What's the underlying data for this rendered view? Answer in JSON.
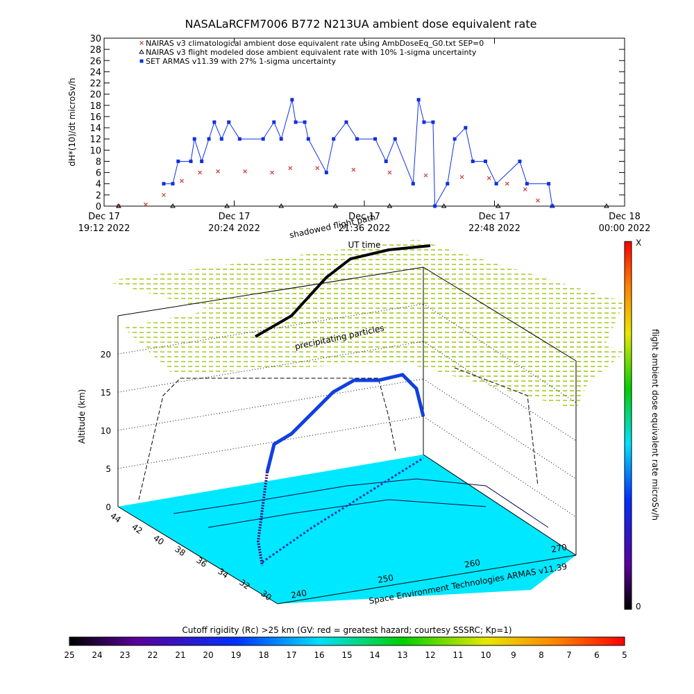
{
  "chart_data": {
    "type": "line",
    "title": "NASALaRCFM7006  B772 N213UA ambient dose equivalent rate",
    "y_label": "dH*(10)/dt microSv/h",
    "xlim": [
      "2022-12-17 19:12",
      "2022-12-18 00:00"
    ],
    "xticks": [
      {
        "value": "2022-12-17 19:12",
        "label": [
          "Dec 17",
          "19:12 2022"
        ]
      },
      {
        "value": "2022-12-17 20:24",
        "label": [
          "Dec 17",
          "20:24 2022"
        ]
      },
      {
        "value": "2022-12-17 21:36",
        "label": [
          "Dec 17",
          "21:36 2022"
        ]
      },
      {
        "value": "2022-12-17 22:48",
        "label": [
          "Dec 17",
          "22:48 2022"
        ]
      },
      {
        "value": "2022-12-18 00:00",
        "label": [
          "Dec 18",
          "00:00 2022"
        ]
      }
    ],
    "ylim": [
      0,
      30
    ],
    "yticks": [
      0,
      2,
      4,
      6,
      8,
      10,
      12,
      14,
      16,
      18,
      20,
      22,
      24,
      26,
      28,
      30
    ],
    "series": [
      {
        "name": "NAIRAS v3 climatological ambient dose equivalent rate using AmbDoseEq_G0.txt SEP=0",
        "color": "#c84040",
        "marker": "x",
        "x": [
          "2022-12-17 19:20",
          "2022-12-17 19:35",
          "2022-12-17 19:45",
          "2022-12-17 19:55",
          "2022-12-17 20:05",
          "2022-12-17 20:15",
          "2022-12-17 20:30",
          "2022-12-17 20:45",
          "2022-12-17 20:55",
          "2022-12-17 21:10",
          "2022-12-17 21:30",
          "2022-12-17 21:50",
          "2022-12-17 22:10",
          "2022-12-17 22:30",
          "2022-12-17 22:45",
          "2022-12-17 22:55",
          "2022-12-17 23:05",
          "2022-12-17 23:12",
          "2022-12-17 23:20"
        ],
        "values": [
          0,
          0.3,
          2,
          4.5,
          6,
          6.2,
          6.2,
          6,
          6.8,
          6.8,
          6.5,
          6,
          5.5,
          5.2,
          5,
          4,
          3,
          1,
          0
        ]
      },
      {
        "name": "NAIRAS v3 flight modeled dose ambient equivalent rate with 10% 1-sigma uncertainty",
        "color": "#000000",
        "marker": "triangle",
        "x": [
          "2022-12-17 19:20",
          "2022-12-17 19:50",
          "2022-12-17 20:20",
          "2022-12-17 20:50",
          "2022-12-17 21:20",
          "2022-12-17 21:50",
          "2022-12-17 22:20",
          "2022-12-17 22:50",
          "2022-12-17 23:20",
          "2022-12-17 23:50"
        ],
        "values": [
          0,
          0,
          0,
          0,
          0,
          0,
          0,
          0,
          0,
          0
        ]
      },
      {
        "name": "SET ARMAS v11.39 with 27% 1-sigma uncertainty",
        "color": "#1030e0",
        "marker": "square",
        "x": [
          "2022-12-17 19:45",
          "2022-12-17 19:50",
          "2022-12-17 19:53",
          "2022-12-17 20:00",
          "2022-12-17 20:02",
          "2022-12-17 20:06",
          "2022-12-17 20:10",
          "2022-12-17 20:13",
          "2022-12-17 20:17",
          "2022-12-17 20:21",
          "2022-12-17 20:27",
          "2022-12-17 20:40",
          "2022-12-17 20:46",
          "2022-12-17 20:50",
          "2022-12-17 20:56",
          "2022-12-17 20:58",
          "2022-12-17 21:03",
          "2022-12-17 21:05",
          "2022-12-17 21:15",
          "2022-12-17 21:19",
          "2022-12-17 21:26",
          "2022-12-17 21:32",
          "2022-12-17 21:42",
          "2022-12-17 21:48",
          "2022-12-17 21:53",
          "2022-12-17 22:03",
          "2022-12-17 22:06",
          "2022-12-17 22:09",
          "2022-12-17 22:14",
          "2022-12-17 22:15",
          "2022-12-17 22:22",
          "2022-12-17 22:26",
          "2022-12-17 22:32",
          "2022-12-17 22:36",
          "2022-12-17 22:43",
          "2022-12-17 22:49",
          "2022-12-17 23:02",
          "2022-12-17 23:06",
          "2022-12-17 23:18",
          "2022-12-17 23:20"
        ],
        "values": [
          4,
          4,
          8,
          8,
          12,
          8,
          12,
          15,
          12,
          15,
          12,
          12,
          15,
          12,
          19,
          15,
          15,
          12,
          6,
          12,
          15,
          12,
          12,
          8,
          12,
          4,
          19,
          15,
          15,
          0,
          4,
          12,
          14,
          8,
          8,
          4,
          8,
          4,
          4,
          0
        ]
      }
    ]
  },
  "panel3d": {
    "shadowed_label": "shadowed flight path",
    "ut_label": "UT time",
    "precip_label": "precipitating particles",
    "altitude_label": "Altitude (km)",
    "altitude_ticks": [
      "0",
      "5",
      "10",
      "15",
      "20"
    ],
    "lat_ticks": [
      "44",
      "42",
      "40",
      "38",
      "36",
      "34",
      "32",
      "30"
    ],
    "lon_ticks": [
      "240",
      "250",
      "260",
      "270"
    ],
    "credit": "Space Environment Technologies ARMAS v11.39",
    "right_colorbar": {
      "label": "flight ambient dose equivalent rate microSv/h",
      "top": "X",
      "bottom": "0"
    },
    "bottom_colorbar": {
      "title": "Cutoff rigidity (Rc) >25 km (GV: red = greatest hazard; courtesy SSSRC; Kp=1)",
      "ticks": [
        "25",
        "24",
        "23",
        "22",
        "21",
        "20",
        "19",
        "18",
        "17",
        "16",
        "15",
        "14",
        "13",
        "12",
        "11",
        "10",
        "9",
        "8",
        "7",
        "6",
        "5"
      ]
    }
  }
}
